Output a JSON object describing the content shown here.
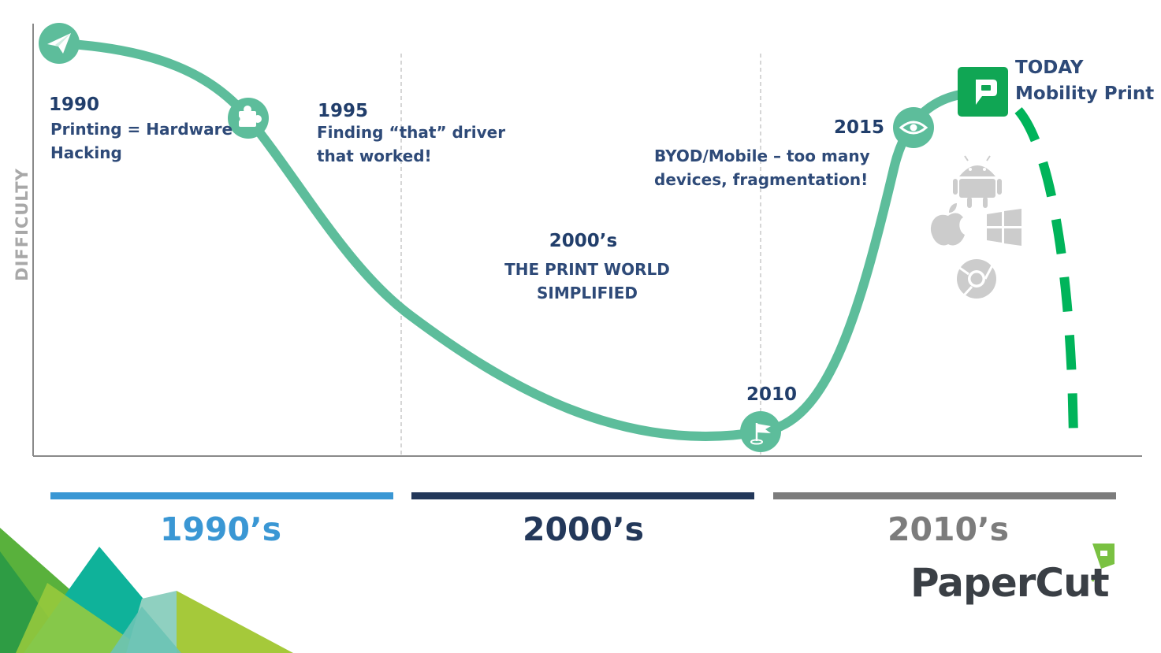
{
  "axis": {
    "ylabel": "DIFFICULTY"
  },
  "milestones": [
    {
      "year": "1990",
      "text_lines": [
        "Printing = Hardware",
        "Hacking"
      ],
      "icon": "paper-plane-icon"
    },
    {
      "year": "1995",
      "text_lines": [
        "Finding “that” driver",
        "that worked!"
      ],
      "icon": "puzzle-piece-icon"
    },
    {
      "year": "2000’s",
      "text_lines": [
        "THE PRINT WORLD",
        "SIMPLIFIED"
      ]
    },
    {
      "year": "2010",
      "text_lines": [],
      "icon": "flag-icon"
    },
    {
      "year": "2015",
      "text_lines": [
        "BYOD/Mobile – too many",
        "devices, fragmentation!"
      ],
      "icon": "eye-icon"
    }
  ],
  "today": {
    "line1": "TODAY",
    "line2": "Mobility Print",
    "icon": "mobility-print-logo-icon"
  },
  "platform_icons": [
    "android-icon",
    "apple-icon",
    "windows-icon",
    "chrome-icon"
  ],
  "decades": [
    {
      "label": "1990’s",
      "color": "#3a97d4"
    },
    {
      "label": "2000’s",
      "color": "#23385a"
    },
    {
      "label": "2010’s",
      "color": "#7c7c7c"
    }
  ],
  "colors": {
    "curve": "#5dbd9b",
    "dashed_future": "#00b45a",
    "mobility_green": "#10a654"
  },
  "brand": {
    "name": "PaperCut"
  }
}
